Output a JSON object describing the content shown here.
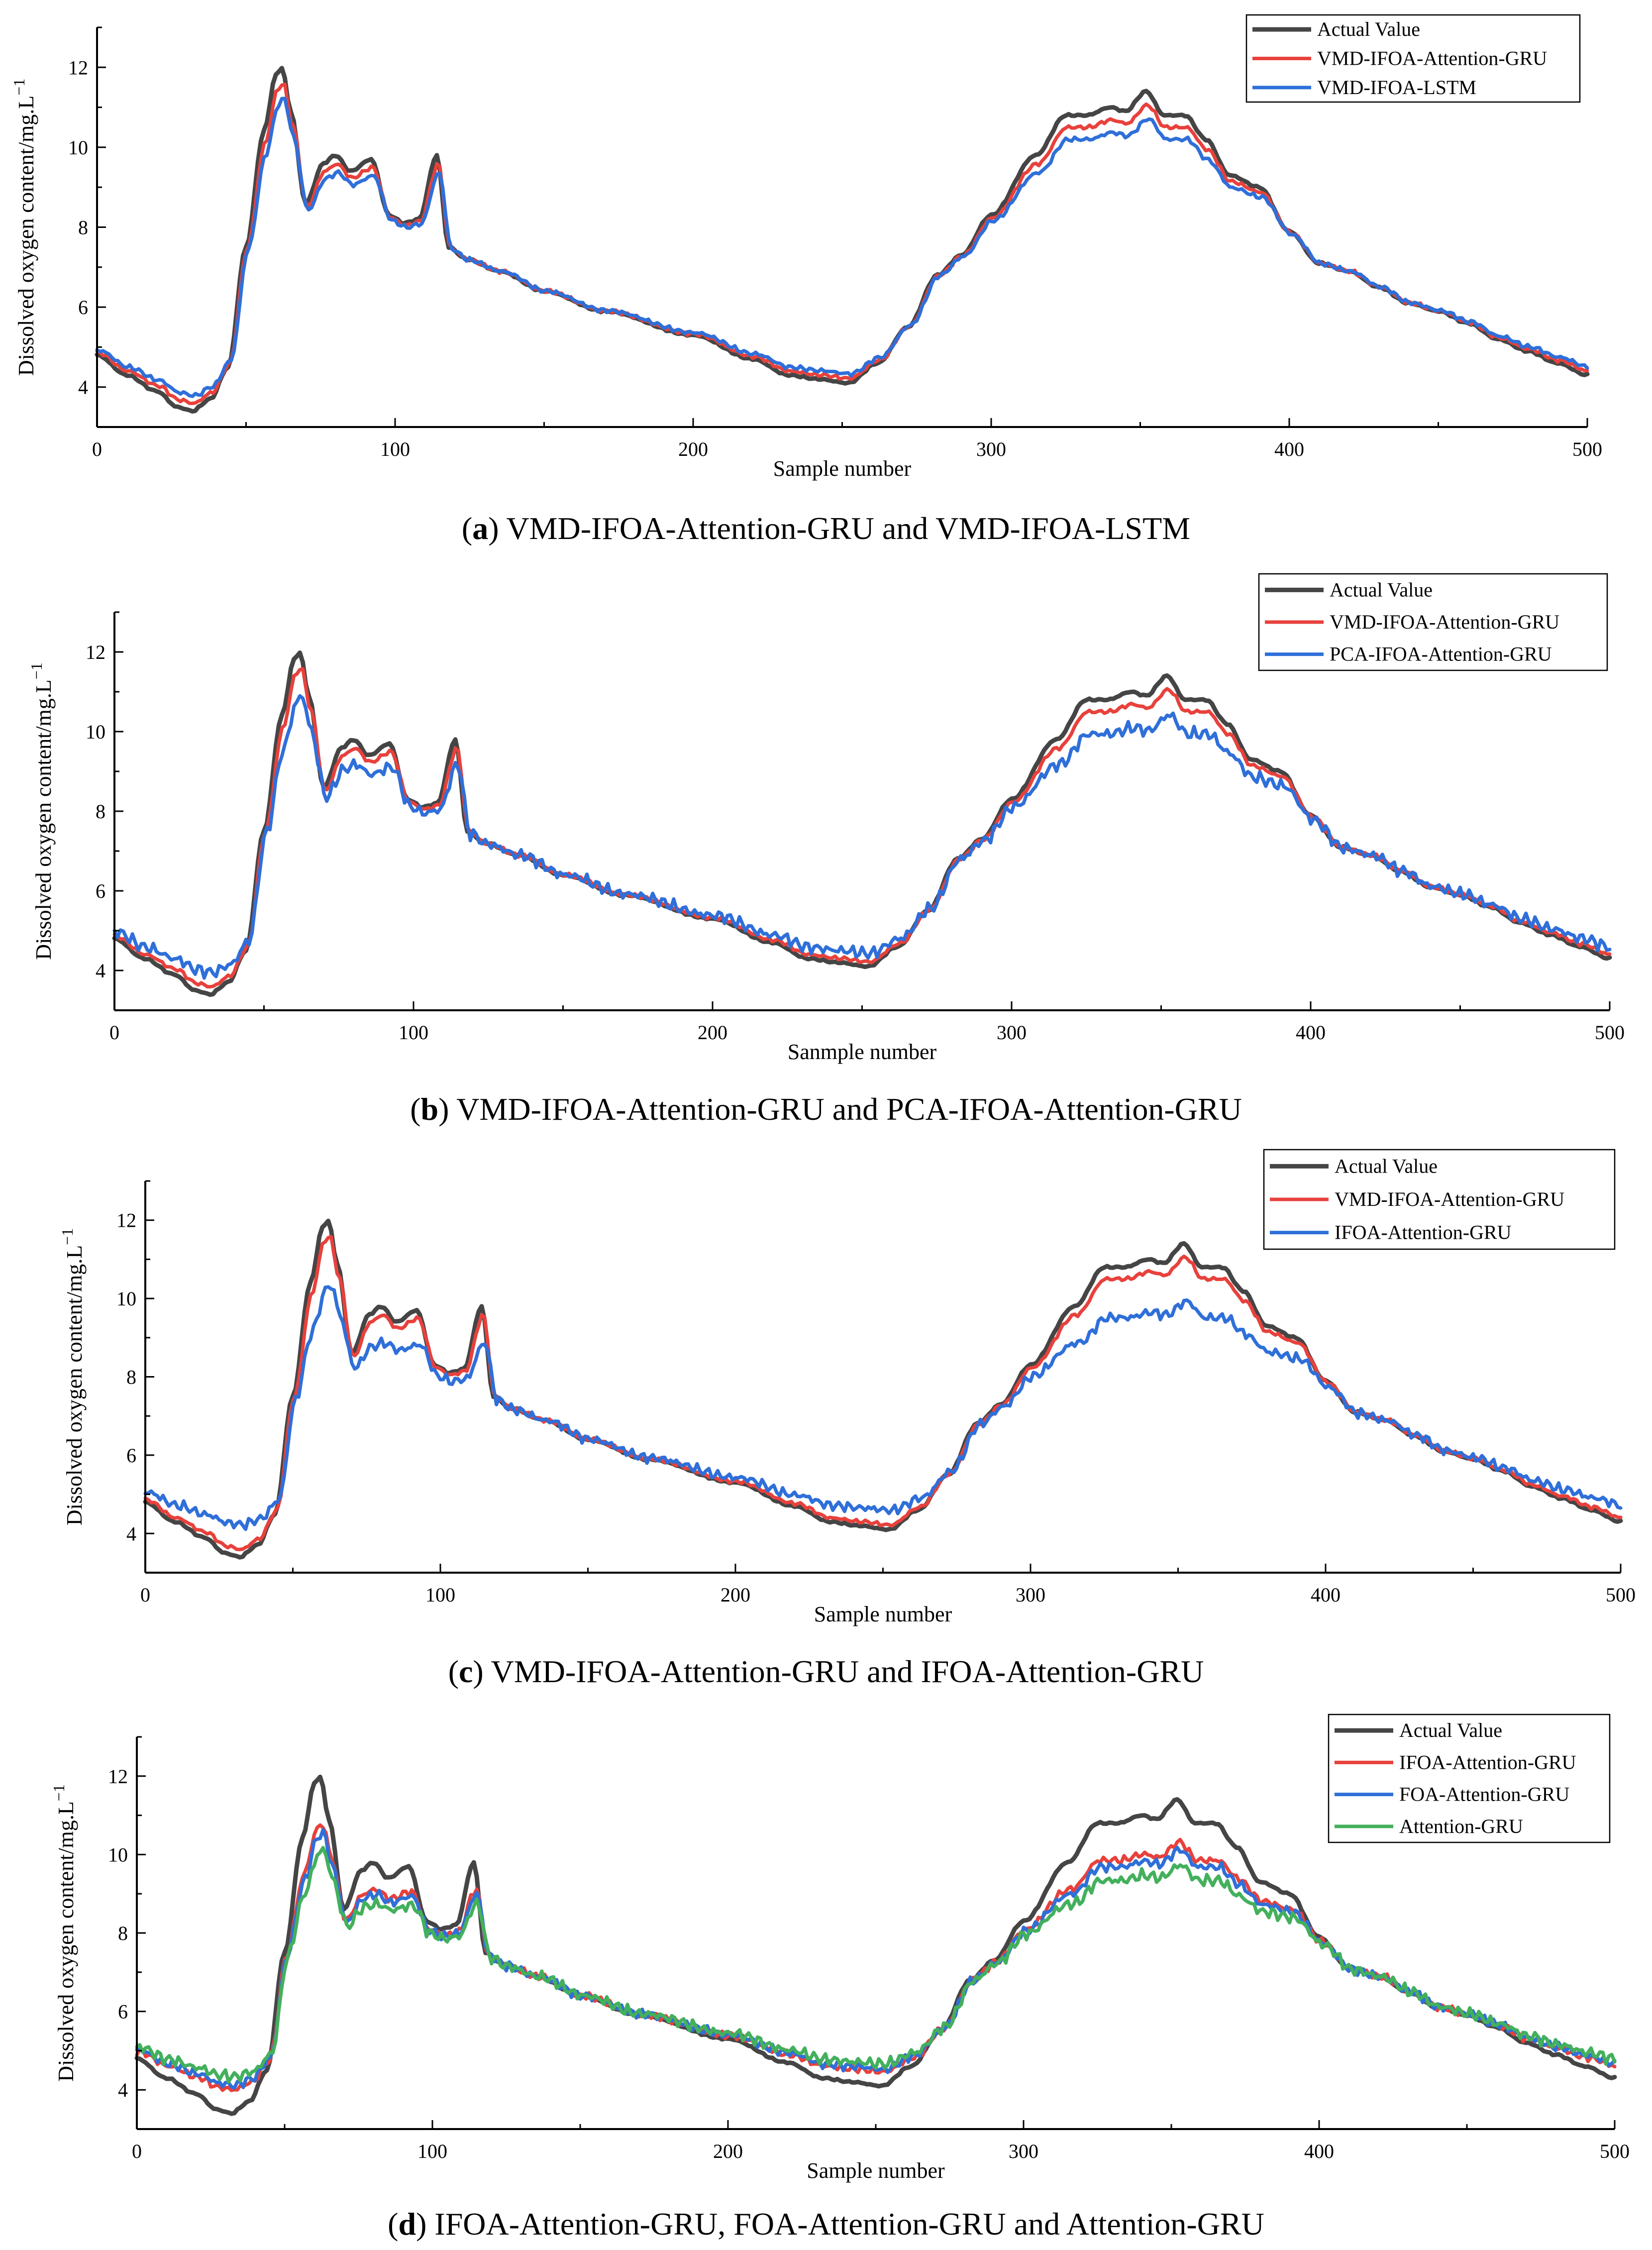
{
  "colors": {
    "actual": "#454545",
    "red": "#e8413c",
    "blue": "#2f6fd9",
    "green": "#43b05c",
    "axis": "#000000"
  },
  "chart_data": [
    {
      "id": "a",
      "type": "line",
      "caption_letter": "a",
      "caption_text": " VMD-IFOA-Attention-GRU and VMD-IFOA-LSTM",
      "xlabel": "Sample number",
      "ylabel": "Dissolved oxygen content/mg.L",
      "ylabel_superscript": "−1",
      "xlim": [
        0,
        500
      ],
      "ylim": [
        3,
        13
      ],
      "xticks": [
        0,
        100,
        200,
        300,
        400,
        500
      ],
      "yticks": [
        4,
        6,
        8,
        10,
        12
      ],
      "legend_position": "top-right",
      "series": [
        {
          "name": "Actual Value",
          "color_key": "actual"
        },
        {
          "name": "VMD-IFOA-Attention-GRU",
          "color_key": "red"
        },
        {
          "name": "VMD-IFOA-LSTM",
          "color_key": "blue"
        }
      ]
    },
    {
      "id": "b",
      "type": "line",
      "caption_letter": "b",
      "caption_text": " VMD-IFOA-Attention-GRU and PCA-IFOA-Attention-GRU",
      "xlabel": "Sanmple number",
      "ylabel": "Dissolved oxygen content/mg.L",
      "ylabel_superscript": "−1",
      "xlim": [
        0,
        500
      ],
      "ylim": [
        3,
        13
      ],
      "xticks": [
        0,
        100,
        200,
        300,
        400,
        500
      ],
      "yticks": [
        4,
        6,
        8,
        10,
        12
      ],
      "legend_position": "top-right",
      "series": [
        {
          "name": "Actual Value",
          "color_key": "actual"
        },
        {
          "name": "VMD-IFOA-Attention-GRU",
          "color_key": "red"
        },
        {
          "name": "PCA-IFOA-Attention-GRU",
          "color_key": "blue"
        }
      ]
    },
    {
      "id": "c",
      "type": "line",
      "caption_letter": "c",
      "caption_text": " VMD-IFOA-Attention-GRU and IFOA-Attention-GRU",
      "xlabel": "Sample number",
      "ylabel": "Dissolved oxygen content/mg.L",
      "ylabel_superscript": "−1",
      "xlim": [
        0,
        500
      ],
      "ylim": [
        3,
        13
      ],
      "xticks": [
        0,
        100,
        200,
        300,
        400,
        500
      ],
      "yticks": [
        4,
        6,
        8,
        10,
        12
      ],
      "legend_position": "top-right",
      "series": [
        {
          "name": "Actual Value",
          "color_key": "actual"
        },
        {
          "name": "VMD-IFOA-Attention-GRU",
          "color_key": "red"
        },
        {
          "name": "IFOA-Attention-GRU",
          "color_key": "blue"
        }
      ]
    },
    {
      "id": "d",
      "type": "line",
      "caption_letter": "d",
      "caption_text": " IFOA-Attention-GRU, FOA-Attention-GRU and Attention-GRU",
      "xlabel": "Sample number",
      "ylabel": "Dissolved oxygen content/mg.L",
      "ylabel_superscript": "−1",
      "xlim": [
        0,
        500
      ],
      "ylim": [
        3,
        13
      ],
      "xticks": [
        0,
        100,
        200,
        300,
        400,
        500
      ],
      "yticks": [
        4,
        6,
        8,
        10,
        12
      ],
      "legend_position": "top-right",
      "series": [
        {
          "name": "Actual Value",
          "color_key": "actual"
        },
        {
          "name": "IFOA-Attention-GRU",
          "color_key": "red"
        },
        {
          "name": "FOA-Attention-GRU",
          "color_key": "blue"
        },
        {
          "name": "Attention-GRU",
          "color_key": "green"
        }
      ]
    }
  ],
  "actual_curve_keypoints": {
    "x": [
      0,
      10,
      20,
      27,
      32,
      38,
      44,
      50,
      56,
      60,
      62,
      65,
      70,
      76,
      80,
      85,
      92,
      98,
      103,
      108,
      114,
      118,
      124,
      135,
      150,
      170,
      200,
      220,
      232,
      242,
      252,
      262,
      272,
      282,
      290,
      300,
      315,
      325,
      332,
      340,
      345,
      352,
      358,
      365,
      372,
      380,
      390,
      400,
      410,
      420,
      430,
      440,
      450,
      460,
      470,
      480,
      490,
      500
    ],
    "y": [
      4.8,
      4.3,
      3.9,
      3.5,
      3.4,
      3.7,
      4.5,
      7.5,
      10.4,
      11.8,
      12.0,
      10.9,
      8.6,
      9.6,
      9.8,
      9.4,
      9.7,
      8.3,
      8.1,
      8.2,
      9.8,
      7.5,
      7.2,
      6.9,
      6.4,
      5.9,
      5.3,
      4.7,
      4.3,
      4.2,
      4.1,
      4.6,
      5.5,
      6.8,
      7.3,
      8.3,
      9.8,
      10.8,
      10.8,
      11.0,
      10.9,
      11.4,
      10.8,
      10.8,
      10.2,
      9.3,
      9.0,
      7.9,
      7.1,
      6.9,
      6.5,
      6.1,
      5.9,
      5.6,
      5.2,
      4.9,
      4.6,
      4.3
    ]
  }
}
